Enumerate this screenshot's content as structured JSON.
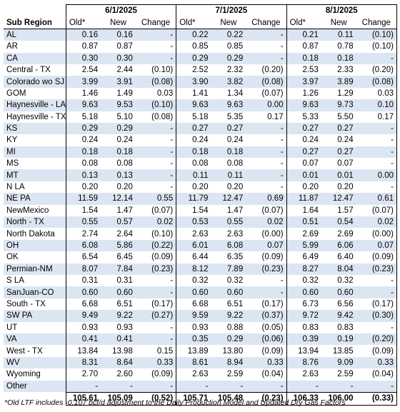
{
  "header": {
    "sub_region_label": "Sub Region",
    "periods": [
      "6/1/2025",
      "7/1/2025",
      "8/1/2025"
    ],
    "col_old": "Old*",
    "col_new": "New",
    "col_change": "Change"
  },
  "rows": [
    {
      "name": "AL",
      "v": [
        [
          "0.16",
          "0.16",
          "-"
        ],
        [
          "0.22",
          "0.22",
          "-"
        ],
        [
          "0.21",
          "0.11",
          "(0.10)"
        ]
      ]
    },
    {
      "name": "AR",
      "v": [
        [
          "0.87",
          "0.87",
          "-"
        ],
        [
          "0.85",
          "0.85",
          "-"
        ],
        [
          "0.87",
          "0.78",
          "(0.10)"
        ]
      ]
    },
    {
      "name": "CA",
      "v": [
        [
          "0.30",
          "0.30",
          "-"
        ],
        [
          "0.29",
          "0.29",
          "-"
        ],
        [
          "0.18",
          "0.18",
          "-"
        ]
      ]
    },
    {
      "name": "Central - TX",
      "v": [
        [
          "2.54",
          "2.44",
          "(0.10)"
        ],
        [
          "2.52",
          "2.32",
          "(0.20)"
        ],
        [
          "2.53",
          "2.33",
          "(0.20)"
        ]
      ]
    },
    {
      "name": "Colorado wo SJ",
      "v": [
        [
          "3.99",
          "3.91",
          "(0.08)"
        ],
        [
          "3.90",
          "3.82",
          "(0.08)"
        ],
        [
          "3.97",
          "3.89",
          "(0.08)"
        ]
      ]
    },
    {
      "name": "GOM",
      "v": [
        [
          "1.46",
          "1.49",
          "0.03"
        ],
        [
          "1.41",
          "1.34",
          "(0.07)"
        ],
        [
          "1.26",
          "1.29",
          "0.03"
        ]
      ]
    },
    {
      "name": "Haynesville - LA",
      "v": [
        [
          "9.63",
          "9.53",
          "(0.10)"
        ],
        [
          "9.63",
          "9.63",
          "0.00"
        ],
        [
          "9.63",
          "9.73",
          "0.10"
        ]
      ]
    },
    {
      "name": "Haynesville - TX",
      "v": [
        [
          "5.18",
          "5.10",
          "(0.08)"
        ],
        [
          "5.18",
          "5.35",
          "0.17"
        ],
        [
          "5.33",
          "5.50",
          "0.17"
        ]
      ]
    },
    {
      "name": "KS",
      "v": [
        [
          "0.29",
          "0.29",
          "-"
        ],
        [
          "0.27",
          "0.27",
          "-"
        ],
        [
          "0.27",
          "0.27",
          "-"
        ]
      ]
    },
    {
      "name": "KY",
      "v": [
        [
          "0.24",
          "0.24",
          "-"
        ],
        [
          "0.24",
          "0.24",
          "-"
        ],
        [
          "0.24",
          "0.24",
          "-"
        ]
      ]
    },
    {
      "name": "MI",
      "v": [
        [
          "0.18",
          "0.18",
          "-"
        ],
        [
          "0.18",
          "0.18",
          "-"
        ],
        [
          "0.27",
          "0.27",
          "-"
        ]
      ]
    },
    {
      "name": "MS",
      "v": [
        [
          "0.08",
          "0.08",
          "-"
        ],
        [
          "0.08",
          "0.08",
          "-"
        ],
        [
          "0.07",
          "0.07",
          "-"
        ]
      ]
    },
    {
      "name": "MT",
      "v": [
        [
          "0.13",
          "0.13",
          "-"
        ],
        [
          "0.11",
          "0.11",
          "-"
        ],
        [
          "0.01",
          "0.01",
          "0.00"
        ]
      ]
    },
    {
      "name": "N LA",
      "v": [
        [
          "0.20",
          "0.20",
          "-"
        ],
        [
          "0.20",
          "0.20",
          "-"
        ],
        [
          "0.20",
          "0.20",
          "-"
        ]
      ]
    },
    {
      "name": "NE PA",
      "v": [
        [
          "11.59",
          "12.14",
          "0.55"
        ],
        [
          "11.79",
          "12.47",
          "0.69"
        ],
        [
          "11.87",
          "12.47",
          "0.61"
        ]
      ]
    },
    {
      "name": "NewMexico",
      "v": [
        [
          "1.54",
          "1.47",
          "(0.07)"
        ],
        [
          "1.54",
          "1.47",
          "(0.07)"
        ],
        [
          "1.64",
          "1.57",
          "(0.07)"
        ]
      ]
    },
    {
      "name": "North - TX",
      "v": [
        [
          "0.55",
          "0.57",
          "0.02"
        ],
        [
          "0.53",
          "0.55",
          "0.02"
        ],
        [
          "0.51",
          "0.54",
          "0.02"
        ]
      ]
    },
    {
      "name": "North Dakota",
      "v": [
        [
          "2.74",
          "2.64",
          "(0.10)"
        ],
        [
          "2.63",
          "2.63",
          "(0.00)"
        ],
        [
          "2.69",
          "2.69",
          "(0.00)"
        ]
      ]
    },
    {
      "name": "OH",
      "v": [
        [
          "6.08",
          "5.86",
          "(0.22)"
        ],
        [
          "6.01",
          "6.08",
          "0.07"
        ],
        [
          "5.99",
          "6.06",
          "0.07"
        ]
      ]
    },
    {
      "name": "OK",
      "v": [
        [
          "6.54",
          "6.45",
          "(0.09)"
        ],
        [
          "6.44",
          "6.35",
          "(0.09)"
        ],
        [
          "6.49",
          "6.40",
          "(0.09)"
        ]
      ]
    },
    {
      "name": "Permian-NM",
      "v": [
        [
          "8.07",
          "7.84",
          "(0.23)"
        ],
        [
          "8.12",
          "7.89",
          "(0.23)"
        ],
        [
          "8.27",
          "8.04",
          "(0.23)"
        ]
      ]
    },
    {
      "name": "S LA",
      "v": [
        [
          "0.31",
          "0.31",
          "-"
        ],
        [
          "0.32",
          "0.32",
          "-"
        ],
        [
          "0.32",
          "0.32",
          "-"
        ]
      ]
    },
    {
      "name": "SanJuan-CO",
      "v": [
        [
          "0.60",
          "0.60",
          "-"
        ],
        [
          "0.60",
          "0.60",
          "-"
        ],
        [
          "0.60",
          "0.60",
          "-"
        ]
      ]
    },
    {
      "name": "South - TX",
      "v": [
        [
          "6.68",
          "6.51",
          "(0.17)"
        ],
        [
          "6.68",
          "6.51",
          "(0.17)"
        ],
        [
          "6.73",
          "6.56",
          "(0.17)"
        ]
      ]
    },
    {
      "name": "SW PA",
      "v": [
        [
          "9.49",
          "9.22",
          "(0.27)"
        ],
        [
          "9.59",
          "9.22",
          "(0.37)"
        ],
        [
          "9.72",
          "9.42",
          "(0.30)"
        ]
      ]
    },
    {
      "name": "UT",
      "v": [
        [
          "0.93",
          "0.93",
          "-"
        ],
        [
          "0.93",
          "0.88",
          "(0.05)"
        ],
        [
          "0.83",
          "0.83",
          "-"
        ]
      ]
    },
    {
      "name": "VA",
      "v": [
        [
          "0.41",
          "0.41",
          "-"
        ],
        [
          "0.35",
          "0.29",
          "(0.06)"
        ],
        [
          "0.39",
          "0.19",
          "(0.20)"
        ]
      ]
    },
    {
      "name": "West - TX",
      "v": [
        [
          "13.84",
          "13.98",
          "0.15"
        ],
        [
          "13.89",
          "13.80",
          "(0.09)"
        ],
        [
          "13.94",
          "13.85",
          "(0.09)"
        ]
      ]
    },
    {
      "name": "WV",
      "v": [
        [
          "8.31",
          "8.64",
          "0.33"
        ],
        [
          "8.61",
          "8.94",
          "0.33"
        ],
        [
          "8.76",
          "9.09",
          "0.33"
        ]
      ]
    },
    {
      "name": "Wyoming",
      "v": [
        [
          "2.70",
          "2.60",
          "(0.09)"
        ],
        [
          "2.63",
          "2.59",
          "(0.04)"
        ],
        [
          "2.63",
          "2.59",
          "(0.04)"
        ]
      ]
    },
    {
      "name": "Other",
      "v": [
        [
          "-",
          "-",
          "-"
        ],
        [
          "-",
          "-",
          "-"
        ],
        [
          "-",
          "-",
          "-"
        ]
      ]
    }
  ],
  "totals": [
    [
      "105.61",
      "105.09",
      "(0.52)"
    ],
    [
      "105.71",
      "105.48",
      "(0.23)"
    ],
    [
      "106.33",
      "106.00",
      "(0.33)"
    ]
  ],
  "footnote": "*Old LTF includes -0.107 bcf/d adjustment to the Daily Production Model and Updated Dry Gas Factors",
  "colors": {
    "band": "#dce6f2",
    "border": "#000000"
  }
}
